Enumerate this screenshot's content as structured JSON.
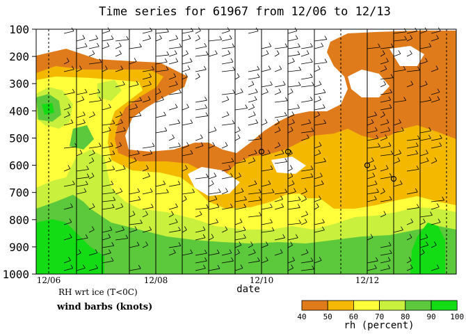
{
  "chart_data": {
    "type": "heatmap",
    "title": "Time series for 61967 from 12/06 to 12/13",
    "xlabel": "date",
    "ylabel": "",
    "x_ticks": [
      "12/06",
      "12/08",
      "12/10",
      "12/12"
    ],
    "y_ticks": [
      "100",
      "200",
      "300",
      "400",
      "500",
      "600",
      "700",
      "800",
      "900",
      "1000"
    ],
    "ylim": [
      100,
      1000
    ],
    "y_inverted": true,
    "notes": [
      "RH wrt ice (T<0C)",
      "wind barbs (knots)"
    ],
    "colorbar": {
      "label": "rh (percent)",
      "ticks": [
        "40",
        "50",
        "60",
        "70",
        "80",
        "90",
        "100"
      ],
      "colors": [
        "#e07b1c",
        "#f5b800",
        "#ffff3c",
        "#c8f03c",
        "#5cc83c",
        "#14dc14"
      ]
    },
    "markers_pressure": [
      550,
      550,
      600,
      650
    ]
  },
  "colors": {
    "rh_40_50": "#e07b1c",
    "rh_50_60": "#f5b800",
    "rh_60_70": "#ffff3c",
    "rh_70_80": "#c8f03c",
    "rh_80_90": "#5cc83c",
    "rh_90_100": "#14dc14"
  }
}
